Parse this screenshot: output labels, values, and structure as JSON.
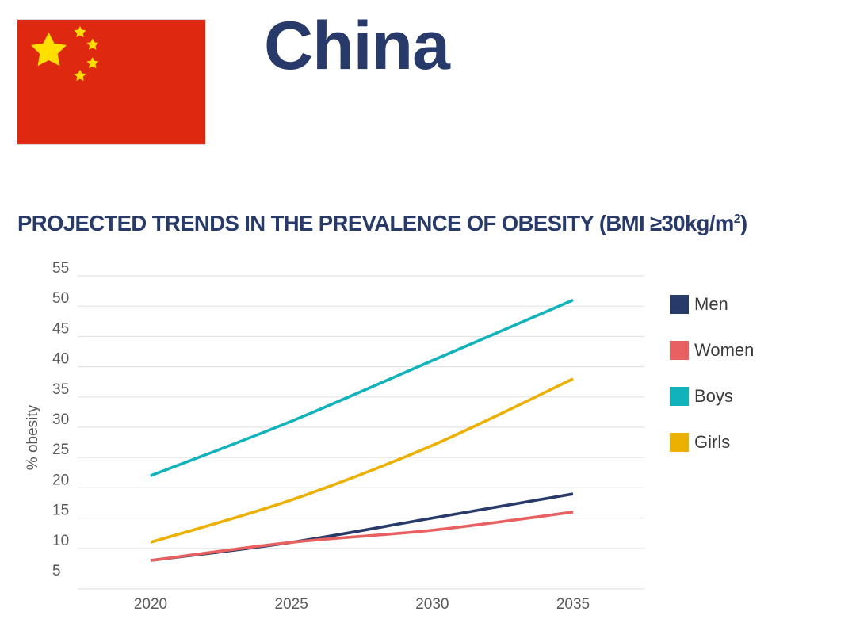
{
  "header": {
    "country": "China"
  },
  "chart_data": {
    "type": "line",
    "title": "PROJECTED TRENDS IN THE PREVALENCE OF OBESITY (BMI ≥30kg/m",
    "title_superscript": "2",
    "title_suffix": ")",
    "xlabel": "",
    "ylabel": "% obesity",
    "x": [
      2020,
      2025,
      2030,
      2035
    ],
    "x_ticks": [
      "2020",
      "2025",
      "2030",
      "2035"
    ],
    "y_ticks": [
      "5",
      "10",
      "15",
      "20",
      "25",
      "30",
      "35",
      "40",
      "45",
      "50",
      "55"
    ],
    "ylim": [
      5,
      55
    ],
    "grid": true,
    "legend_position": "right",
    "series": [
      {
        "name": "Men",
        "color": "#283a69",
        "values": [
          8,
          11,
          15,
          19
        ]
      },
      {
        "name": "Women",
        "color": "#e8605f",
        "values": [
          8,
          11,
          13,
          16
        ]
      },
      {
        "name": "Boys",
        "color": "#12b2bb",
        "values": [
          22,
          31,
          41,
          51
        ]
      },
      {
        "name": "Girls",
        "color": "#ebb000",
        "values": [
          11,
          18,
          27,
          38
        ]
      }
    ]
  },
  "flag": {
    "icon": "china-flag-icon",
    "field_color": "#de2910",
    "star_color": "#ffde00"
  }
}
